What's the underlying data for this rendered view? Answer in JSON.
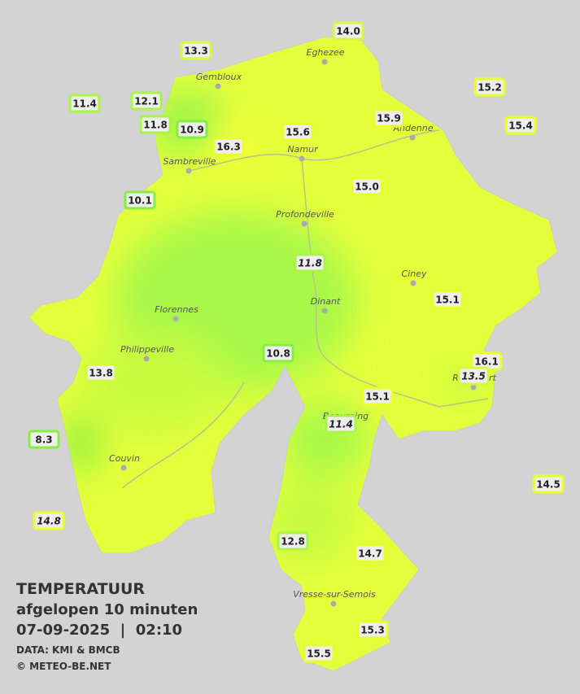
{
  "stations": [
    {
      "value": "14.0"
    },
    {
      "value": "13.3"
    },
    {
      "value": "12.1"
    },
    {
      "value": "11.4"
    },
    {
      "value": "11.8"
    },
    {
      "value": "10.9"
    },
    {
      "value": "16.3"
    },
    {
      "value": "15.6"
    },
    {
      "value": "15.9"
    },
    {
      "value": "15.2"
    },
    {
      "value": "15.4"
    },
    {
      "value": "10.1"
    },
    {
      "value": "15.0"
    },
    {
      "value": "11.8"
    },
    {
      "value": "15.1"
    },
    {
      "value": "10.8"
    },
    {
      "value": "16.1"
    },
    {
      "value": "13.5"
    },
    {
      "value": "13.8"
    },
    {
      "value": "15.1"
    },
    {
      "value": "11.4"
    },
    {
      "value": "8.3"
    },
    {
      "value": "14.5"
    },
    {
      "value": "14.8"
    },
    {
      "value": "12.8"
    },
    {
      "value": "14.7"
    },
    {
      "value": "15.3"
    },
    {
      "value": "15.5"
    }
  ],
  "cities": [
    {
      "name": "Eghezee"
    },
    {
      "name": "Gembloux"
    },
    {
      "name": "Andenne"
    },
    {
      "name": "Namur"
    },
    {
      "name": "Sambreville"
    },
    {
      "name": "Profondeville"
    },
    {
      "name": "Ciney"
    },
    {
      "name": "Dinant"
    },
    {
      "name": "Florennes"
    },
    {
      "name": "Philippeville"
    },
    {
      "name": "Rochefort"
    },
    {
      "name": "Beauraing"
    },
    {
      "name": "Couvin"
    },
    {
      "name": "Vresse-sur-Semois"
    }
  ],
  "legend": {
    "title": "TEMPERATUUR",
    "subtitle": "afgelopen 10 minuten",
    "timestamp": "07-09-2025  |  02:10",
    "source": "DATA: KMI & BMCB",
    "copyright": "© METEO-BE.NET"
  }
}
